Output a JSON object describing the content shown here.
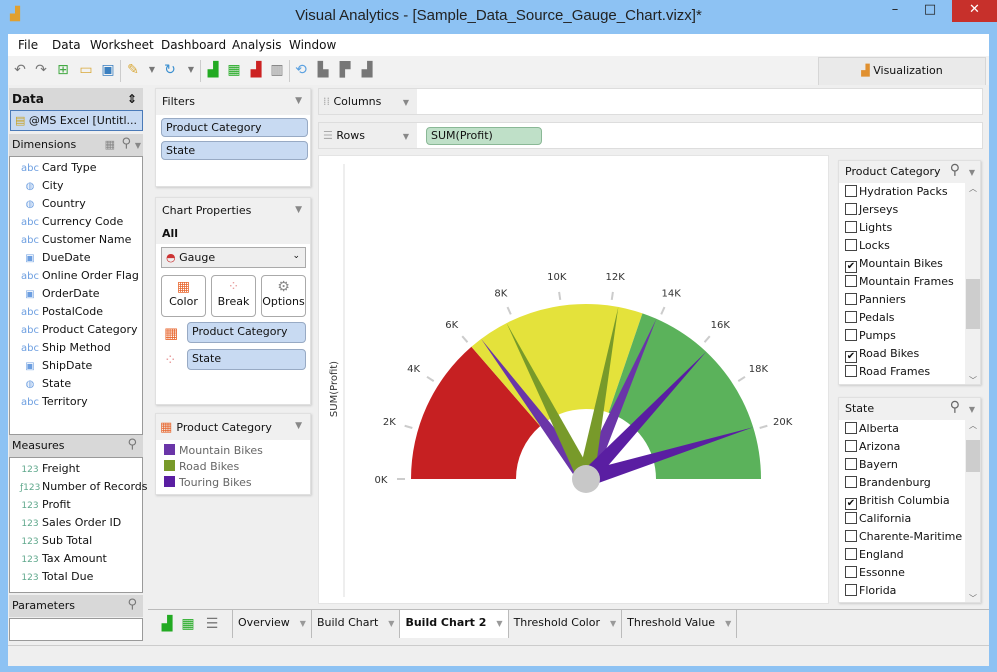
{
  "window": {
    "title": "Visual Analytics - [Sample_Data_Source_Gauge_Chart.vizx]*",
    "minimize": "–",
    "maximize": "□",
    "close": "✕"
  },
  "menu": [
    "File",
    "Data",
    "Worksheet",
    "Dashboard",
    "Analysis",
    "Window"
  ],
  "toolbar": {
    "visualization_tab": "Visualization"
  },
  "data_panel": {
    "title": "Data",
    "source": "@MS Excel [Untitl...",
    "dimensions_label": "Dimensions",
    "dimensions": [
      {
        "type": "abc",
        "label": "Card Type"
      },
      {
        "type": "geo",
        "label": "City"
      },
      {
        "type": "geo",
        "label": "Country"
      },
      {
        "type": "abc",
        "label": "Currency Code"
      },
      {
        "type": "abc",
        "label": "Customer Name"
      },
      {
        "type": "date",
        "label": "DueDate"
      },
      {
        "type": "abc",
        "label": "Online Order Flag"
      },
      {
        "type": "date",
        "label": "OrderDate"
      },
      {
        "type": "abc",
        "label": "PostalCode"
      },
      {
        "type": "abc",
        "label": "Product Category"
      },
      {
        "type": "abc",
        "label": "Ship Method"
      },
      {
        "type": "date",
        "label": "ShipDate"
      },
      {
        "type": "geo",
        "label": "State"
      },
      {
        "type": "abc",
        "label": "Territory"
      }
    ],
    "measures_label": "Measures",
    "measures": [
      {
        "type": "123",
        "label": "Freight"
      },
      {
        "type": "f123",
        "label": "Number of Records"
      },
      {
        "type": "123",
        "label": "Profit"
      },
      {
        "type": "123",
        "label": "Sales Order ID"
      },
      {
        "type": "123",
        "label": "Sub Total"
      },
      {
        "type": "123",
        "label": "Tax Amount"
      },
      {
        "type": "123",
        "label": "Total Due"
      }
    ],
    "parameters_label": "Parameters"
  },
  "filters": {
    "title": "Filters",
    "items": [
      "Product Category",
      "State"
    ]
  },
  "chart_properties": {
    "title": "Chart Properties",
    "scope": "All",
    "chart_type": "Gauge",
    "buttons": [
      "Color",
      "Break",
      "Options"
    ],
    "color_field": "Product Category",
    "break_field": "State"
  },
  "legend": {
    "title": "Product Category",
    "items": [
      {
        "label": "Mountain Bikes",
        "color": "#6a35a8"
      },
      {
        "label": "Road Bikes",
        "color": "#789a2a"
      },
      {
        "label": "Touring Bikes",
        "color": "#5a1ea2"
      }
    ]
  },
  "shelves": {
    "columns_label": "Columns",
    "rows_label": "Rows",
    "rows_pill": "SUM(Profit)"
  },
  "chart_data": {
    "type": "gauge",
    "ylabel": "SUM(Profit)",
    "range": [
      0,
      22000
    ],
    "ticks": [
      "0K",
      "2K",
      "4K",
      "6K",
      "8K",
      "10K",
      "12K",
      "14K",
      "16K",
      "18K",
      "20K"
    ],
    "bands": [
      {
        "from": 0,
        "to": 6000,
        "color": "#c62022"
      },
      {
        "from": 6000,
        "to": 13300,
        "color": "#e4e23b"
      },
      {
        "from": 13300,
        "to": 22000,
        "color": "#5bb25b"
      }
    ],
    "series": [
      {
        "name": "Mountain Bikes",
        "color": "#6a35a8",
        "values": [
          6500,
          13900
        ]
      },
      {
        "name": "Road Bikes",
        "color": "#789a2a",
        "values": [
          7700,
          12300
        ]
      },
      {
        "name": "Touring Bikes",
        "color": "#5a1ea2",
        "values": [
          16300,
          19900
        ]
      }
    ]
  },
  "product_filter": {
    "title": "Product Category",
    "items": [
      {
        "label": "Hydration Packs",
        "checked": false
      },
      {
        "label": "Jerseys",
        "checked": false
      },
      {
        "label": "Lights",
        "checked": false
      },
      {
        "label": "Locks",
        "checked": false
      },
      {
        "label": "Mountain Bikes",
        "checked": true
      },
      {
        "label": "Mountain Frames",
        "checked": false
      },
      {
        "label": "Panniers",
        "checked": false
      },
      {
        "label": "Pedals",
        "checked": false
      },
      {
        "label": "Pumps",
        "checked": false
      },
      {
        "label": "Road Bikes",
        "checked": true
      },
      {
        "label": "Road Frames",
        "checked": false
      }
    ]
  },
  "state_filter": {
    "title": "State",
    "items": [
      {
        "label": "Alberta",
        "checked": false
      },
      {
        "label": "Arizona",
        "checked": false
      },
      {
        "label": "Bayern",
        "checked": false
      },
      {
        "label": "Brandenburg",
        "checked": false
      },
      {
        "label": "British Columbia",
        "checked": true
      },
      {
        "label": "California",
        "checked": false
      },
      {
        "label": "Charente-Maritime",
        "checked": false
      },
      {
        "label": "England",
        "checked": false
      },
      {
        "label": "Essonne",
        "checked": false
      },
      {
        "label": "Florida",
        "checked": false
      }
    ]
  },
  "sheet_tabs": [
    {
      "label": "Overview",
      "active": false
    },
    {
      "label": "Build Chart",
      "active": false
    },
    {
      "label": "Build Chart 2",
      "active": true
    },
    {
      "label": "Threshold Color",
      "active": false
    },
    {
      "label": "Threshold Value",
      "active": false
    }
  ]
}
